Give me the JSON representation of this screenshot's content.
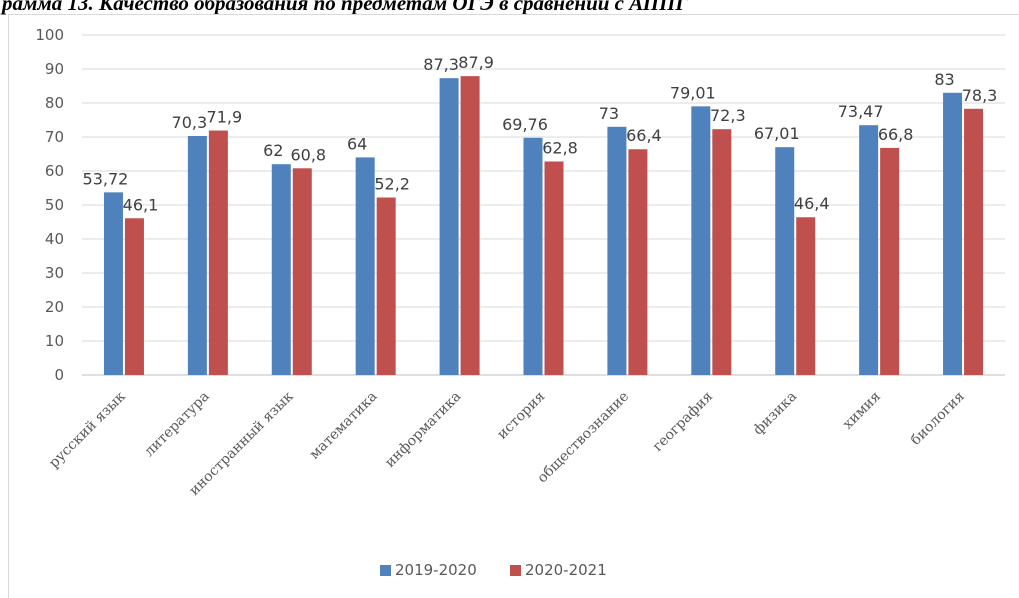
{
  "header": {
    "title": "рамма 13. Качество образования по предметам ОГЭ в сравнении с АППГ"
  },
  "chart_data": {
    "type": "bar",
    "title": "",
    "xlabel": "",
    "ylabel": "",
    "ylim": [
      0,
      100
    ],
    "ytick_step": 10,
    "grid": true,
    "legend_position": "bottom",
    "categories": [
      "русский язык",
      "литература",
      "иностранный язык",
      "математика",
      "информатика",
      "история",
      "обществознание",
      "география",
      "физика",
      "химия",
      "биология"
    ],
    "series": [
      {
        "name": "2019-2020",
        "color": "#4f81bd",
        "values": [
          53.72,
          70.3,
          62,
          64,
          87.3,
          69.76,
          73,
          79.01,
          67.01,
          73.47,
          83
        ],
        "labels": [
          "53,72",
          "70,3",
          "62",
          "64",
          "87,3",
          "69,76",
          "73",
          "79,01",
          "67,01",
          "73,47",
          "83"
        ]
      },
      {
        "name": "2020-2021",
        "color": "#c0504d",
        "values": [
          46.1,
          71.9,
          60.8,
          52.2,
          87.9,
          62.8,
          66.4,
          72.3,
          46.4,
          66.8,
          78.3
        ],
        "labels": [
          "46,1",
          "71,9",
          "60,8",
          "52,2",
          "87,9",
          "62,8",
          "66,4",
          "72,3",
          "46,4",
          "66,8",
          "78,3"
        ]
      }
    ]
  }
}
